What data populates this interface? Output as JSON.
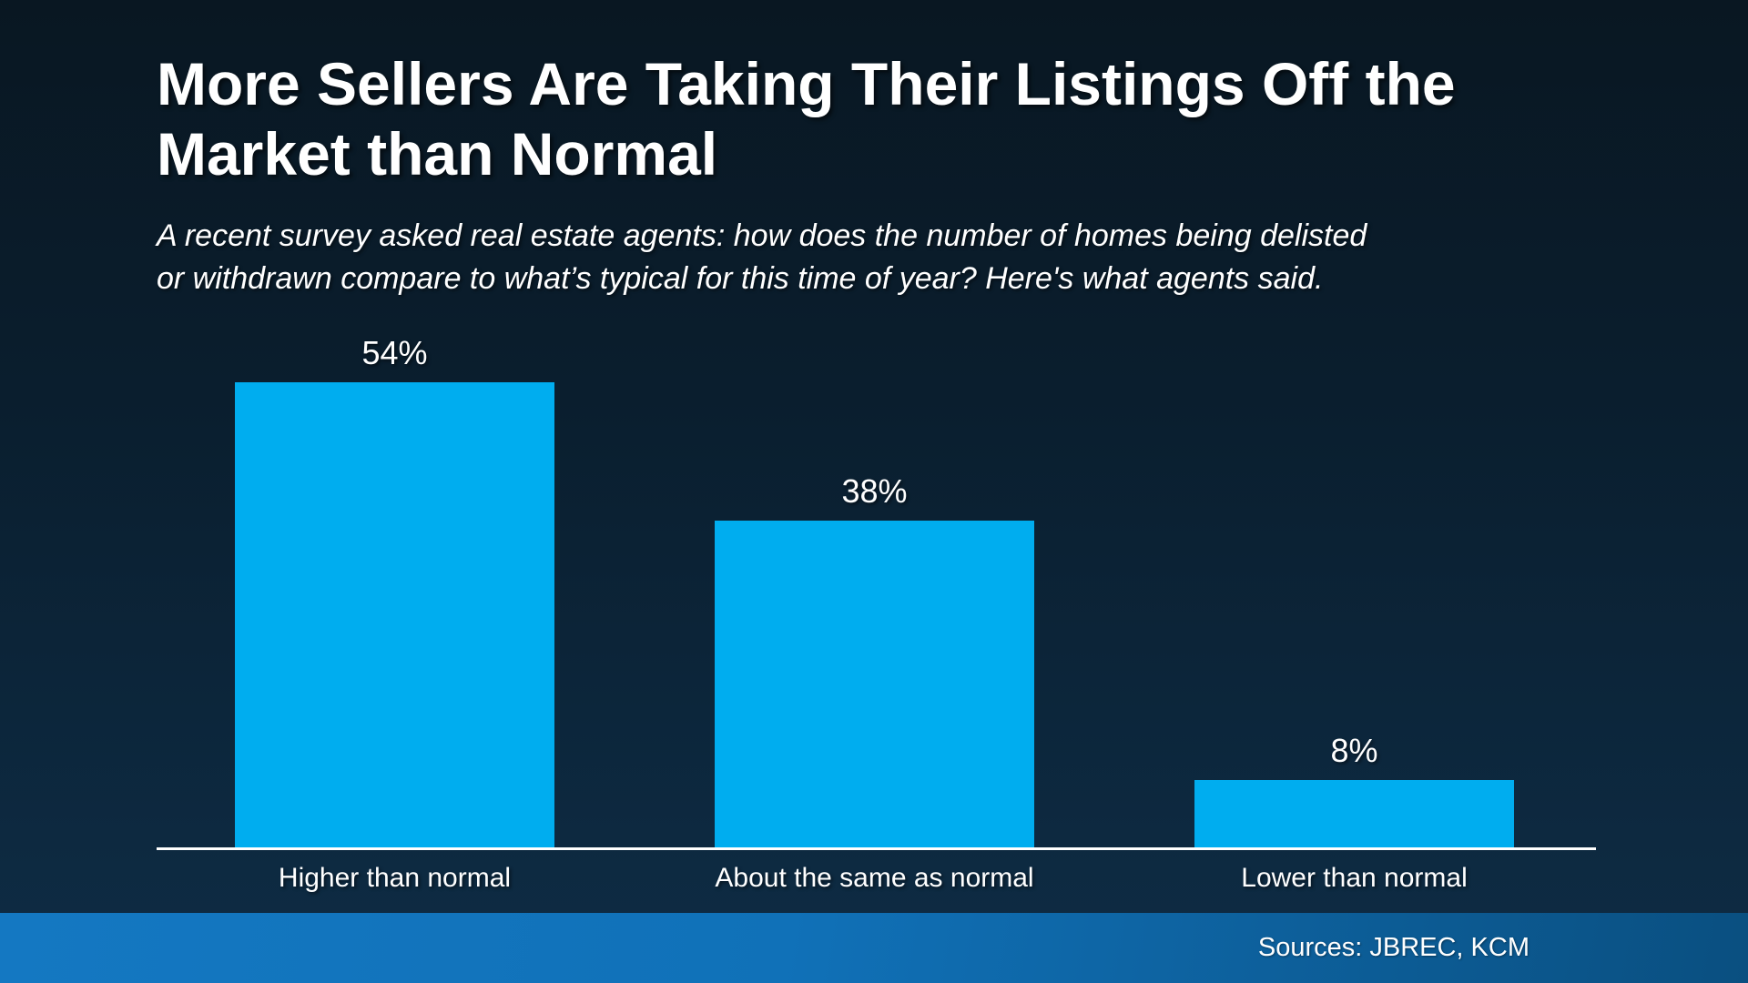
{
  "header": {
    "title": "More Sellers Are Taking Their Listings Off the Market than Normal",
    "title_lines": [
      "More Sellers Are Taking Their Listings Off the",
      "Market than Normal"
    ],
    "subtitle": "A recent survey asked real estate agents: how does the number of homes being delisted or withdrawn compare to what’s typical for this time of year? Here's what agents said.",
    "subtitle_lines": [
      "A recent survey asked real estate agents: how does the number of homes being delisted",
      "or withdrawn compare to what’s typical for this time of year? Here's what agents said."
    ]
  },
  "chart_data": {
    "type": "bar",
    "title": "More Sellers Are Taking Their Listings Off the Market than Normal",
    "categories": [
      "Higher than normal",
      "About the same as normal",
      "Lower than normal"
    ],
    "values": [
      54,
      38,
      8
    ],
    "value_labels": [
      "54%",
      "38%",
      "8%"
    ],
    "unit": "%",
    "ylim": [
      0,
      57
    ],
    "grid": false,
    "legend": false,
    "bar_color": "#00ADEF",
    "baseline_color": "#FFFFFF"
  },
  "footer": {
    "source": "Sources: JBREC, KCM"
  },
  "colors": {
    "background_top": "#091722",
    "background_bottom": "#0E2C44",
    "bar": "#00ADEF",
    "footer_left": "#1478C2",
    "footer_right": "#0A4F80",
    "text": "#FFFFFF"
  }
}
